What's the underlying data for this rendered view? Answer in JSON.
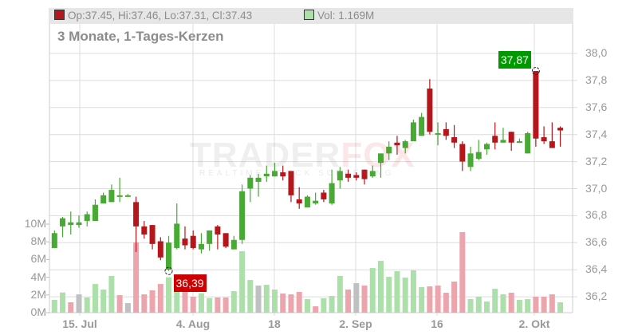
{
  "header": {
    "ohlc_text": "Op:37.45, Hi:37.46, Lo:37.31, Cl:37.43",
    "volume_text": "Vol: 1.169M",
    "ohlc_swatch_color": "#b5161b",
    "volume_swatch_color": "#addfab"
  },
  "title": "3 Monate, 1-Tages-Kerzen",
  "watermark": {
    "brand_a": "TRADER",
    "brand_b": "FOX",
    "tagline": "REALTIME STOCK SCREENING"
  },
  "chart_data": {
    "type": "candlestick",
    "price_axis": {
      "ticks": [
        "38,0",
        "37,8",
        "37,6",
        "37,4",
        "37,2",
        "37,0",
        "36,8",
        "36,6",
        "36,4",
        "36,2"
      ],
      "range": [
        36.15,
        38.1
      ]
    },
    "volume_axis": {
      "ticks": [
        "10M",
        "8M",
        "6M",
        "4M",
        "2M",
        "0M"
      ],
      "range": [
        0,
        10
      ]
    },
    "x_ticks": [
      "15. Jul",
      "4. Aug",
      "18",
      "2. Sep",
      "16",
      "2. Okt"
    ],
    "grid": true,
    "colors": {
      "up": "#48a934",
      "down": "#b5161b",
      "vol_up": "#addfab",
      "vol_down": "#eca4ad",
      "vol_flat": "#c0c0c0"
    },
    "annotations": [
      {
        "label": "36,39",
        "type": "low",
        "candle": 15,
        "value": 36.39,
        "color": "#cc0000"
      },
      {
        "label": "37,87",
        "type": "high",
        "candle": 60,
        "value": 37.87,
        "color": "#009900"
      }
    ],
    "candles": [
      [
        36.56,
        36.69,
        36.56,
        36.67
      ],
      [
        36.72,
        36.79,
        36.64,
        36.78
      ],
      [
        36.73,
        36.83,
        36.66,
        36.75
      ],
      [
        36.73,
        36.8,
        36.71,
        36.75
      ],
      [
        36.76,
        36.83,
        36.72,
        36.81
      ],
      [
        36.76,
        36.92,
        36.76,
        36.88
      ],
      [
        36.89,
        36.97,
        36.89,
        36.95
      ],
      [
        36.9,
        37.03,
        36.9,
        36.99
      ],
      [
        36.95,
        37.08,
        36.9,
        36.95
      ],
      [
        36.95,
        36.96,
        36.94,
        36.95
      ],
      [
        36.9,
        36.94,
        36.53,
        36.72
      ],
      [
        36.72,
        36.76,
        36.63,
        36.66
      ],
      [
        36.73,
        36.73,
        36.55,
        36.59
      ],
      [
        36.61,
        36.64,
        36.47,
        36.49
      ],
      [
        36.4,
        36.65,
        36.39,
        36.6
      ],
      [
        36.56,
        36.89,
        36.55,
        36.74
      ],
      [
        36.63,
        36.72,
        36.55,
        36.58
      ],
      [
        36.65,
        36.69,
        36.55,
        36.56
      ],
      [
        36.55,
        36.67,
        36.52,
        36.59
      ],
      [
        36.59,
        36.69,
        36.54,
        36.69
      ],
      [
        36.72,
        36.73,
        36.55,
        36.66
      ],
      [
        36.67,
        36.67,
        36.56,
        36.57
      ],
      [
        36.55,
        36.65,
        36.55,
        36.62
      ],
      [
        36.62,
        37.03,
        36.59,
        36.98
      ],
      [
        37.0,
        37.1,
        36.9,
        37.08
      ],
      [
        37.05,
        37.11,
        36.94,
        37.08
      ],
      [
        37.09,
        37.17,
        37.05,
        37.11
      ],
      [
        37.09,
        37.19,
        37.09,
        37.13
      ],
      [
        37.12,
        37.17,
        37.06,
        37.09
      ],
      [
        37.13,
        37.13,
        36.9,
        36.95
      ],
      [
        36.92,
        37.01,
        36.85,
        36.89
      ],
      [
        36.86,
        36.95,
        36.86,
        36.94
      ],
      [
        36.89,
        36.97,
        36.88,
        36.91
      ],
      [
        36.97,
        36.99,
        36.9,
        36.92
      ],
      [
        36.89,
        37.14,
        36.88,
        37.04
      ],
      [
        37.06,
        37.16,
        37.0,
        37.13
      ],
      [
        37.11,
        37.14,
        37.05,
        37.08
      ],
      [
        37.1,
        37.12,
        37.06,
        37.08
      ],
      [
        37.14,
        37.14,
        37.03,
        37.07
      ],
      [
        37.09,
        37.17,
        37.08,
        37.13
      ],
      [
        37.19,
        37.26,
        37.08,
        37.26
      ],
      [
        37.26,
        37.35,
        37.21,
        37.31
      ],
      [
        37.34,
        37.39,
        37.25,
        37.32
      ],
      [
        37.3,
        37.36,
        37.26,
        37.35
      ],
      [
        37.35,
        37.51,
        37.35,
        37.49
      ],
      [
        37.39,
        37.56,
        37.39,
        37.53
      ],
      [
        37.74,
        37.81,
        37.4,
        37.42
      ],
      [
        37.4,
        37.49,
        37.32,
        37.41
      ],
      [
        37.44,
        37.49,
        37.36,
        37.39
      ],
      [
        37.38,
        37.47,
        37.3,
        37.34
      ],
      [
        37.33,
        37.35,
        37.13,
        37.2
      ],
      [
        37.16,
        37.31,
        37.13,
        37.26
      ],
      [
        37.22,
        37.36,
        37.21,
        37.27
      ],
      [
        37.29,
        37.34,
        37.25,
        37.33
      ],
      [
        37.39,
        37.49,
        37.29,
        37.34
      ],
      [
        37.34,
        37.45,
        37.34,
        37.36
      ],
      [
        37.42,
        37.42,
        37.28,
        37.34
      ],
      [
        37.34,
        37.37,
        37.34,
        37.35
      ],
      [
        37.26,
        37.42,
        37.26,
        37.41
      ],
      [
        37.87,
        37.87,
        37.31,
        37.37
      ],
      [
        37.38,
        37.46,
        37.33,
        37.35
      ],
      [
        37.35,
        37.49,
        37.3,
        37.3
      ],
      [
        37.45,
        37.46,
        37.31,
        37.43
      ]
    ],
    "volumes_m": [
      1.44,
      2.28,
      1.17,
      2.07,
      1.71,
      3.24,
      2.61,
      4.14,
      1.98,
      1.08,
      7.93,
      2.07,
      2.52,
      3.24,
      4.0,
      2.9,
      2.34,
      1.8,
      2.2,
      1.65,
      1.71,
      1.71,
      2.43,
      6.94,
      3.69,
      3.06,
      3.15,
      2.61,
      2.16,
      2.07,
      2.34,
      1.53,
      0.72,
      1.62,
      1.89,
      4.14,
      2.61,
      3.33,
      3.06,
      5.04,
      5.85,
      4.05,
      4.68,
      3.96,
      4.77,
      2.88,
      2.97,
      3.06,
      2.25,
      3.51,
      9.1,
      1.53,
      1.8,
      1.26,
      2.7,
      2.07,
      2.25,
      1.44,
      1.53,
      1.8,
      1.8,
      2.07,
      1.169
    ],
    "volume_colors": [
      "up",
      "up",
      "down",
      "flat",
      "up",
      "up",
      "up",
      "up",
      "down",
      "flat",
      "down",
      "down",
      "down",
      "down",
      "up",
      "up",
      "down",
      "down",
      "up",
      "up",
      "down",
      "down",
      "up",
      "up",
      "up",
      "flat",
      "up",
      "up",
      "down",
      "down",
      "down",
      "up",
      "down",
      "up",
      "up",
      "up",
      "down",
      "flat",
      "down",
      "up",
      "up",
      "up",
      "up",
      "up",
      "up",
      "up",
      "down",
      "down",
      "down",
      "down",
      "down",
      "up",
      "up",
      "up",
      "up",
      "up",
      "down",
      "up",
      "up",
      "down",
      "down",
      "down",
      "up"
    ]
  }
}
